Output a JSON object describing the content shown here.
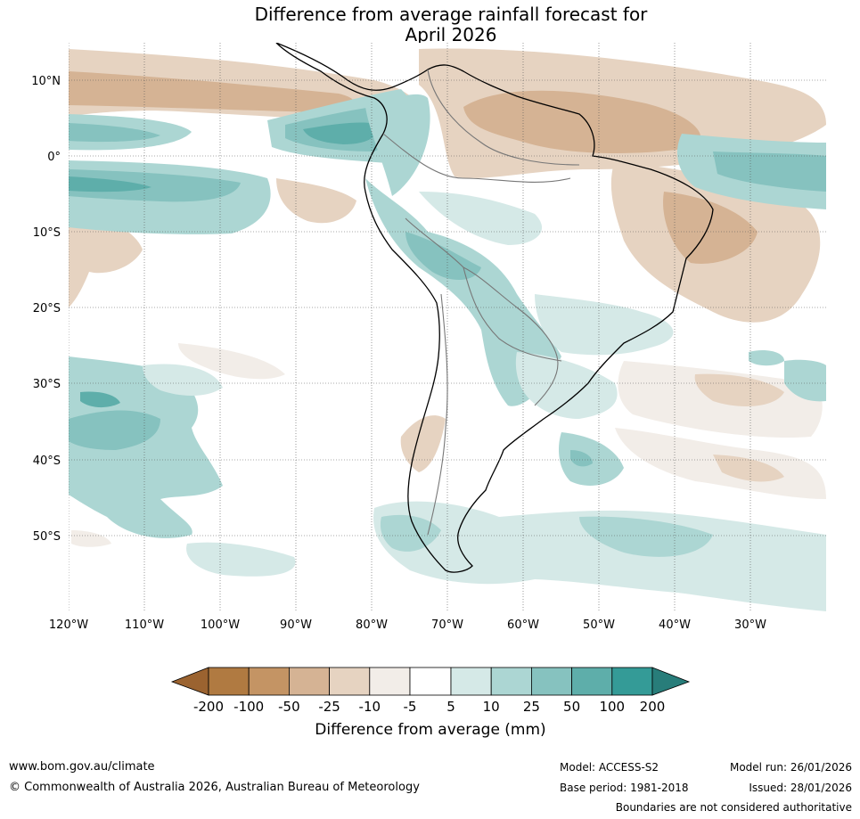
{
  "title": {
    "line1": "Difference from average rainfall forecast for",
    "line2": "April 2026"
  },
  "map": {
    "region": "South America",
    "lat_labels": [
      "10°N",
      "0°",
      "10°S",
      "20°S",
      "30°S",
      "40°S",
      "50°S"
    ],
    "lon_labels": [
      "120°W",
      "110°W",
      "100°W",
      "90°W",
      "80°W",
      "70°W",
      "60°W",
      "50°W",
      "40°W",
      "30°W"
    ]
  },
  "legend": {
    "title": "Difference from average (mm)",
    "ticks": [
      "-200",
      "-100",
      "-50",
      "-25",
      "-10",
      "-5",
      "5",
      "10",
      "25",
      "50",
      "100",
      "200"
    ],
    "colors": [
      "#9b6330",
      "#b07a41",
      "#c49464",
      "#d5b394",
      "#e6d3c1",
      "#f2ede8",
      "#ffffff",
      "#d5e9e7",
      "#acd6d3",
      "#86c2bf",
      "#5eaeaa",
      "#349b97",
      "#287d7a"
    ]
  },
  "footer": {
    "website": "www.bom.gov.au/climate",
    "copyright": "© Commonwealth of Australia 2026, Australian Bureau of Meteorology",
    "model": "Model: ACCESS-S2",
    "base_period": "Base period: 1981-2018",
    "model_run": "Model run: 26/01/2026",
    "issued": "Issued: 28/01/2026",
    "disclaimer": "Boundaries are not considered authoritative"
  }
}
